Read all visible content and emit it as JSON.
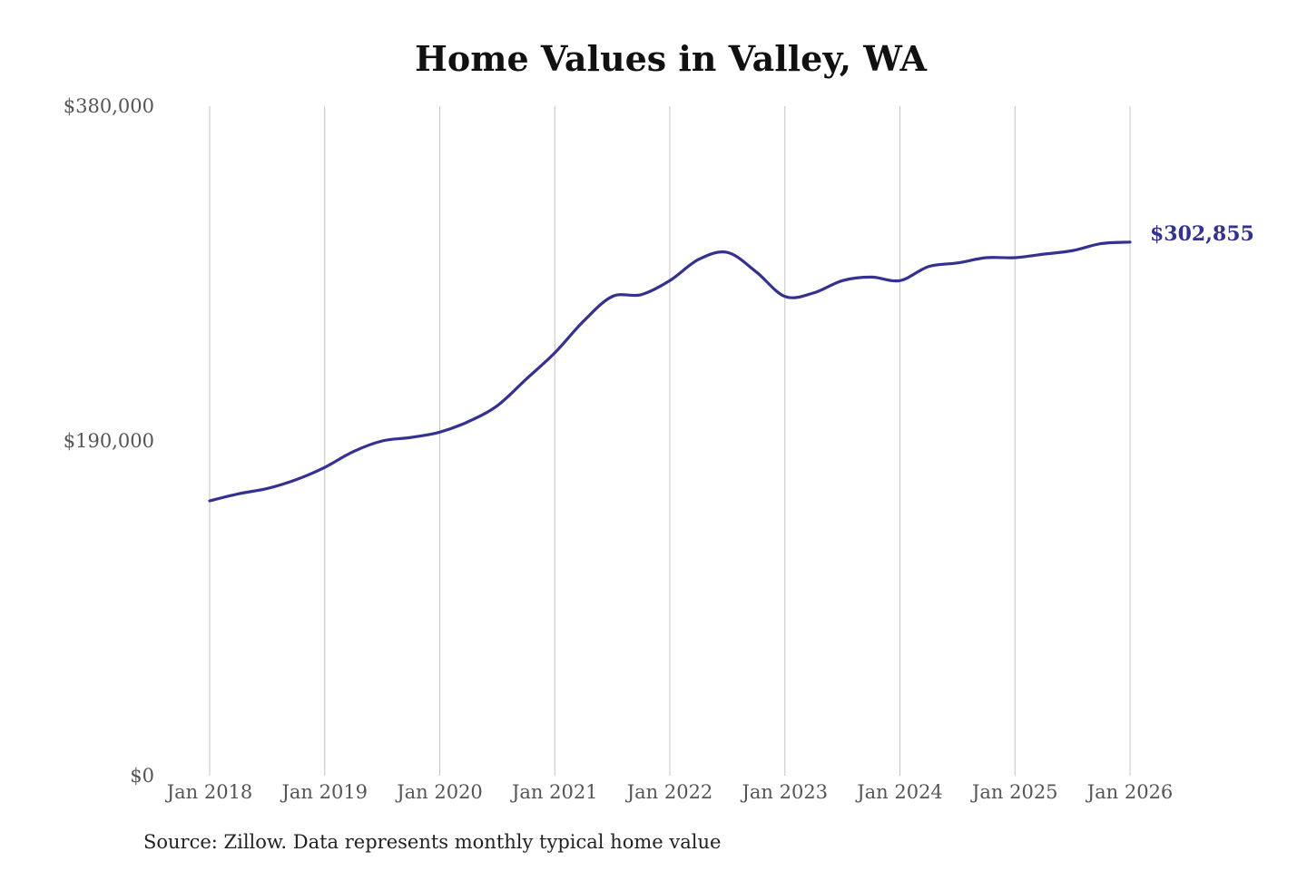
{
  "colors": {
    "line": "#35318f",
    "grid": "#c4c4c4",
    "axis_text": "#555555"
  },
  "chart_data": {
    "type": "line",
    "title": "Home Values in Valley, WA",
    "xlabel": "",
    "ylabel": "",
    "ylim": [
      0,
      380000
    ],
    "y_ticks": [
      0,
      190000,
      380000
    ],
    "y_tick_labels": [
      "$0",
      "$190,000",
      "$380,000"
    ],
    "x_ticks": [
      "2018-01",
      "2019-01",
      "2020-01",
      "2021-01",
      "2022-01",
      "2023-01",
      "2024-01",
      "2025-01",
      "2026-01"
    ],
    "x_tick_labels": [
      "Jan 2018",
      "Jan 2019",
      "Jan 2020",
      "Jan 2021",
      "Jan 2022",
      "Jan 2023",
      "Jan 2024",
      "Jan 2025",
      "Jan 2026"
    ],
    "grid": "vertical",
    "end_label": "$302,855",
    "series": [
      {
        "x": [
          "2018-01",
          "2018-04",
          "2018-07",
          "2018-10",
          "2019-01",
          "2019-04",
          "2019-07",
          "2019-10",
          "2020-01",
          "2020-04",
          "2020-07",
          "2020-10",
          "2021-01",
          "2021-04",
          "2021-07",
          "2021-10",
          "2022-01",
          "2022-04",
          "2022-07",
          "2022-10",
          "2023-01",
          "2023-04",
          "2023-07",
          "2023-10",
          "2024-01",
          "2024-04",
          "2024-07",
          "2024-10",
          "2025-01",
          "2025-04",
          "2025-07",
          "2025-10",
          "2026-01"
        ],
        "values": [
          156000,
          160000,
          163000,
          168000,
          175000,
          184000,
          190000,
          192000,
          195000,
          201000,
          210000,
          225000,
          240000,
          258000,
          272000,
          273000,
          281000,
          293000,
          297000,
          286000,
          272000,
          274000,
          281000,
          283000,
          281000,
          289000,
          291000,
          294000,
          294000,
          296000,
          298000,
          302000,
          302855
        ]
      }
    ]
  },
  "source_note": "Source: Zillow. Data represents monthly typical home value"
}
